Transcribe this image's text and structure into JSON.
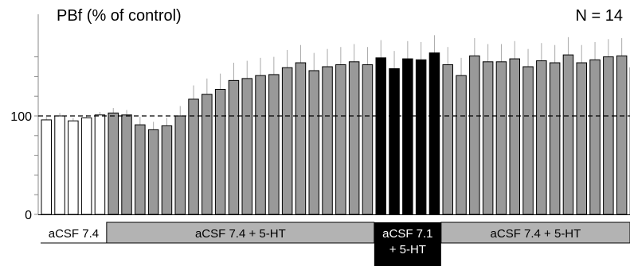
{
  "chart_data": {
    "type": "bar",
    "title": "PBf (% of control)",
    "annotation": "N = 14",
    "ylim": [
      0,
      170
    ],
    "yticks": [
      0,
      100
    ],
    "reference_line": 100,
    "error_bars": true,
    "colors": {
      "white": "#ffffff",
      "gray": "#999999",
      "black": "#000000",
      "edge": "#000000",
      "error": "#aaaaaa"
    },
    "series": [
      {
        "values": [
          96,
          100,
          95,
          98,
          101
        ],
        "fill": "white",
        "errors": [
          3,
          3,
          3,
          3,
          3
        ]
      },
      {
        "values": [
          103,
          101,
          91,
          86,
          90,
          100,
          117,
          122,
          127,
          136,
          138,
          141,
          142,
          149,
          154,
          146,
          150,
          152,
          155,
          152
        ],
        "fill": "gray",
        "errors": [
          5,
          5,
          8,
          8,
          8,
          10,
          14,
          16,
          16,
          18,
          18,
          18,
          18,
          18,
          18,
          18,
          18,
          18,
          18,
          18
        ]
      },
      {
        "values": [
          159,
          148,
          158,
          157,
          164
        ],
        "fill": "black",
        "errors": [
          18,
          18,
          18,
          18,
          18
        ]
      },
      {
        "values": [
          152,
          141,
          161,
          155,
          155,
          158,
          150,
          156,
          154,
          162,
          154,
          157,
          160,
          161,
          149
        ],
        "fill": "gray",
        "errors": [
          18,
          18,
          18,
          18,
          18,
          18,
          18,
          18,
          18,
          18,
          18,
          18,
          18,
          18,
          18
        ]
      }
    ],
    "conditions": [
      {
        "label": "aCSF 7.4",
        "bars": 5,
        "style": "white"
      },
      {
        "label": "aCSF 7.4 + 5-HT",
        "bars": 20,
        "style": "gray"
      },
      {
        "label": "aCSF 7.1\n+ 5-HT",
        "bars": 5,
        "style": "black"
      },
      {
        "label": "aCSF 7.4 + 5-HT",
        "bars": 15,
        "style": "gray"
      }
    ]
  }
}
